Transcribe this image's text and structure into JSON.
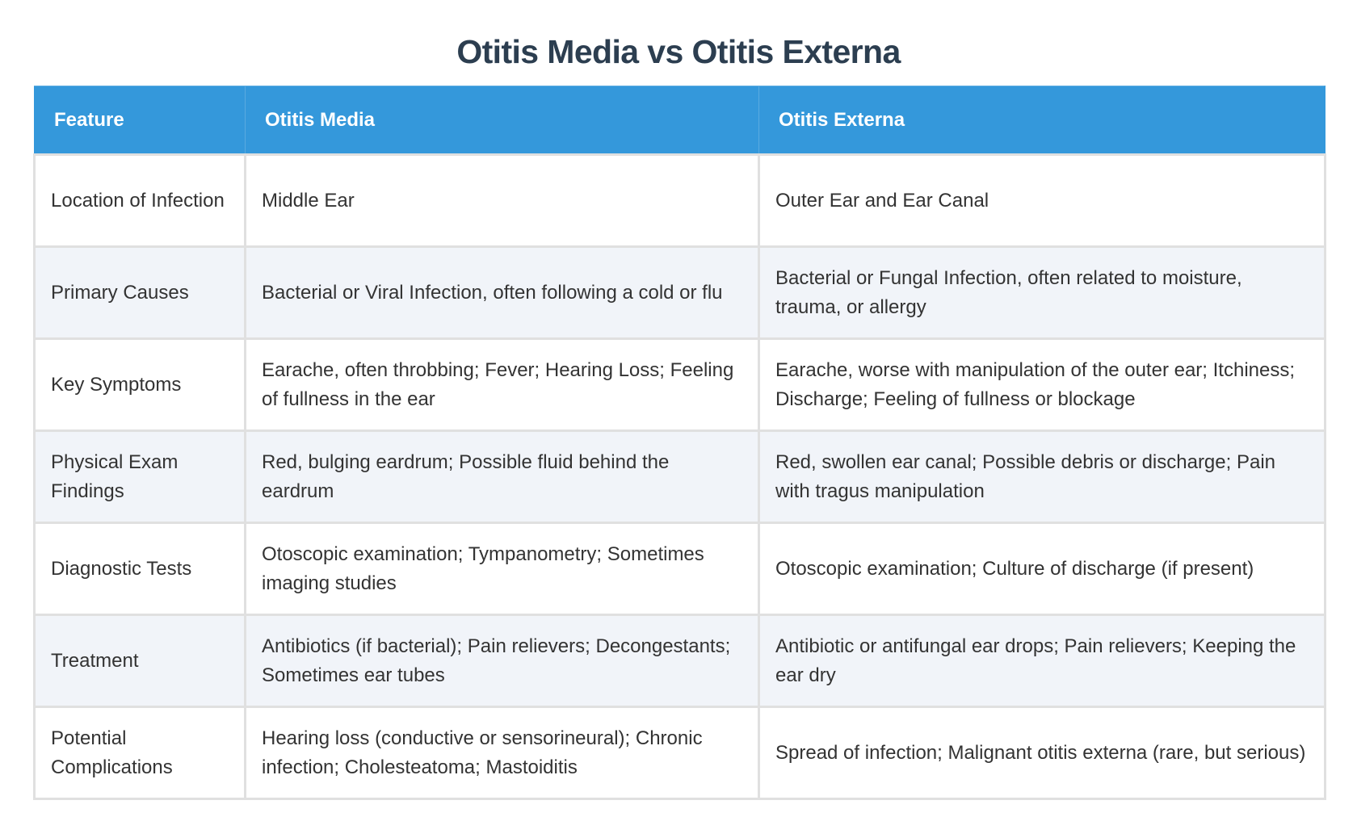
{
  "title": "Otitis Media vs Otitis Externa",
  "colors": {
    "title": "#2c3e50",
    "header_bg": "#3498db",
    "header_text": "#ffffff",
    "row_alt_bg": "#f1f4f9",
    "border": "#e0e0e0",
    "body_text": "#333333"
  },
  "table": {
    "headers": [
      "Feature",
      "Otitis Media",
      "Otitis Externa"
    ],
    "rows": [
      {
        "feature": "Location of Infection",
        "media": "Middle Ear",
        "externa": "Outer Ear and Ear Canal"
      },
      {
        "feature": "Primary Causes",
        "media": "Bacterial or Viral Infection, often following a cold or flu",
        "externa": "Bacterial or Fungal Infection, often related to moisture, trauma, or allergy"
      },
      {
        "feature": "Key Symptoms",
        "media": "Earache, often throbbing; Fever; Hearing Loss; Feeling of fullness in the ear",
        "externa": "Earache, worse with manipulation of the outer ear; Itchiness; Discharge; Feeling of fullness or blockage"
      },
      {
        "feature": "Physical Exam Findings",
        "media": "Red, bulging eardrum; Possible fluid behind the eardrum",
        "externa": "Red, swollen ear canal; Possible debris or discharge; Pain with tragus manipulation"
      },
      {
        "feature": "Diagnostic Tests",
        "media": "Otoscopic examination; Tympanometry; Sometimes imaging studies",
        "externa": "Otoscopic examination; Culture of discharge (if present)"
      },
      {
        "feature": "Treatment",
        "media": "Antibiotics (if bacterial); Pain relievers; Decongestants; Sometimes ear tubes",
        "externa": "Antibiotic or antifungal ear drops; Pain relievers; Keeping the ear dry"
      },
      {
        "feature": "Potential Complications",
        "media": "Hearing loss (conductive or sensorineural); Chronic infection; Cholesteatoma; Mastoiditis",
        "externa": "Spread of infection; Malignant otitis externa (rare, but serious)"
      }
    ]
  }
}
